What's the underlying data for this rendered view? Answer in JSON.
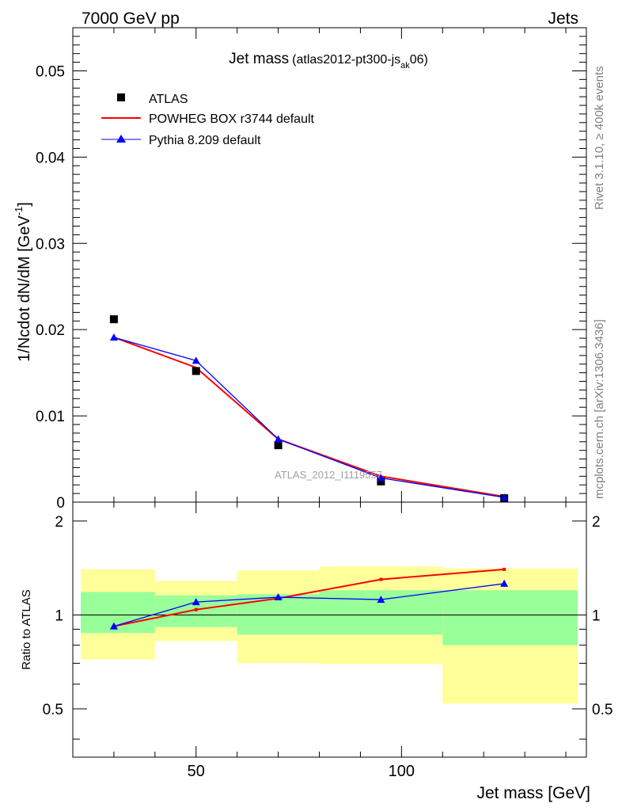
{
  "header": {
    "left": "7000 GeV pp",
    "right": "Jets"
  },
  "side_labels": {
    "rivet": "Rivet 3.1.10, ≥ 400k events",
    "mcplots": "mcplots.cern.ch [arXiv:1306.3436]"
  },
  "chart_data": [
    {
      "type": "scatter",
      "title": "Jet mass",
      "subtitle": "(atlas2012-pt300-js",
      "subtitle_sub": "ak",
      "subtitle_tail": "06)",
      "ylabel": "1/Ncdot dN/dM [GeV",
      "ylabel_sup": "-1",
      "ylabel_tail": "]",
      "watermark": "ATLAS_2012_I1119557",
      "xlim": [
        20,
        145
      ],
      "ylim": [
        0,
        0.055
      ],
      "yticks": [
        0,
        0.01,
        0.02,
        0.03,
        0.04,
        0.05
      ],
      "ytick_labels": [
        "0",
        "0.01",
        "0.02",
        "0.03",
        "0.04",
        "0.05"
      ],
      "legend_position": "top-left",
      "colors": {
        "atlas": "#000000",
        "powheg": "#ff0000",
        "pythia": "#0000ff"
      },
      "series": [
        {
          "name": "ATLAS",
          "style": "square-marker",
          "x": [
            30,
            50,
            70,
            95,
            125
          ],
          "y": [
            0.0212,
            0.0152,
            0.0066,
            0.0024,
            0.00045
          ]
        },
        {
          "name": "POWHEG BOX r3744 default",
          "style": "line",
          "x": [
            30,
            50,
            70,
            95,
            125
          ],
          "y": [
            0.0191,
            0.0156,
            0.0073,
            0.003,
            0.00064
          ]
        },
        {
          "name": "Pythia 8.209 default",
          "style": "line-triangle",
          "x": [
            30,
            50,
            70,
            95,
            125
          ],
          "y": [
            0.0191,
            0.0164,
            0.0073,
            0.0028,
            0.00055
          ]
        }
      ]
    },
    {
      "type": "line",
      "ylabel": "Ratio to ATLAS",
      "xlabel": "Jet mass [GeV]",
      "xlim": [
        20,
        145
      ],
      "ylim": [
        0.35,
        2.3
      ],
      "xticks": [
        50,
        100
      ],
      "xtick_labels": [
        "50",
        "100"
      ],
      "yticks": [
        0.5,
        1,
        2
      ],
      "ytick_labels": [
        "0.5",
        "1",
        "2"
      ],
      "bands": [
        {
          "x0": 20,
          "x1": 40,
          "inner": [
            0.875,
            1.185
          ],
          "outer": [
            0.72,
            1.4
          ]
        },
        {
          "x0": 40,
          "x1": 60,
          "inner": [
            0.915,
            1.155
          ],
          "outer": [
            0.825,
            1.285
          ]
        },
        {
          "x0": 60,
          "x1": 80,
          "inner": [
            0.865,
            1.165
          ],
          "outer": [
            0.7,
            1.39
          ]
        },
        {
          "x0": 80,
          "x1": 110,
          "inner": [
            0.865,
            1.2
          ],
          "outer": [
            0.695,
            1.43
          ]
        },
        {
          "x0": 110,
          "x1": 145,
          "inner": [
            0.8,
            1.2
          ],
          "outer": [
            0.52,
            1.41
          ]
        }
      ],
      "band_colors": {
        "inner": "#99ff99",
        "outer": "#ffff99"
      },
      "series": [
        {
          "name": "POWHEG BOX r3744 default",
          "x": [
            30,
            50,
            70,
            95,
            125
          ],
          "y": [
            0.92,
            1.04,
            1.13,
            1.3,
            1.4
          ]
        },
        {
          "name": "Pythia 8.209 default",
          "x": [
            30,
            50,
            70,
            95,
            125
          ],
          "y": [
            0.92,
            1.1,
            1.14,
            1.12,
            1.26
          ]
        }
      ]
    }
  ]
}
